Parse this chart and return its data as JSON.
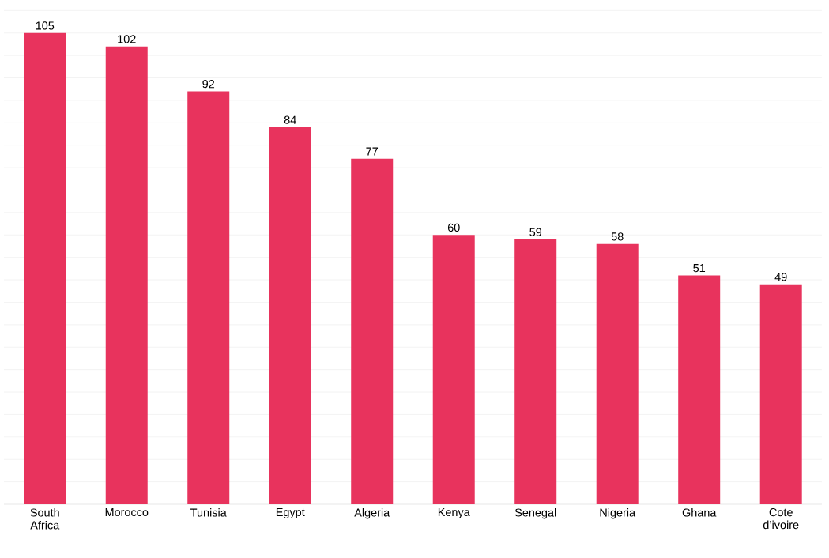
{
  "chart_data": {
    "type": "bar",
    "categories": [
      "South Africa",
      "Morocco",
      "Tunisia",
      "Egypt",
      "Algeria",
      "Kenya",
      "Senegal",
      "Nigeria",
      "Ghana",
      "Cote d’ivoire"
    ],
    "values": [
      105,
      102,
      92,
      84,
      77,
      60,
      59,
      58,
      51,
      49
    ],
    "color": "#e8335d",
    "grid": "y",
    "tick_labels": "x",
    "data_labels": true
  }
}
